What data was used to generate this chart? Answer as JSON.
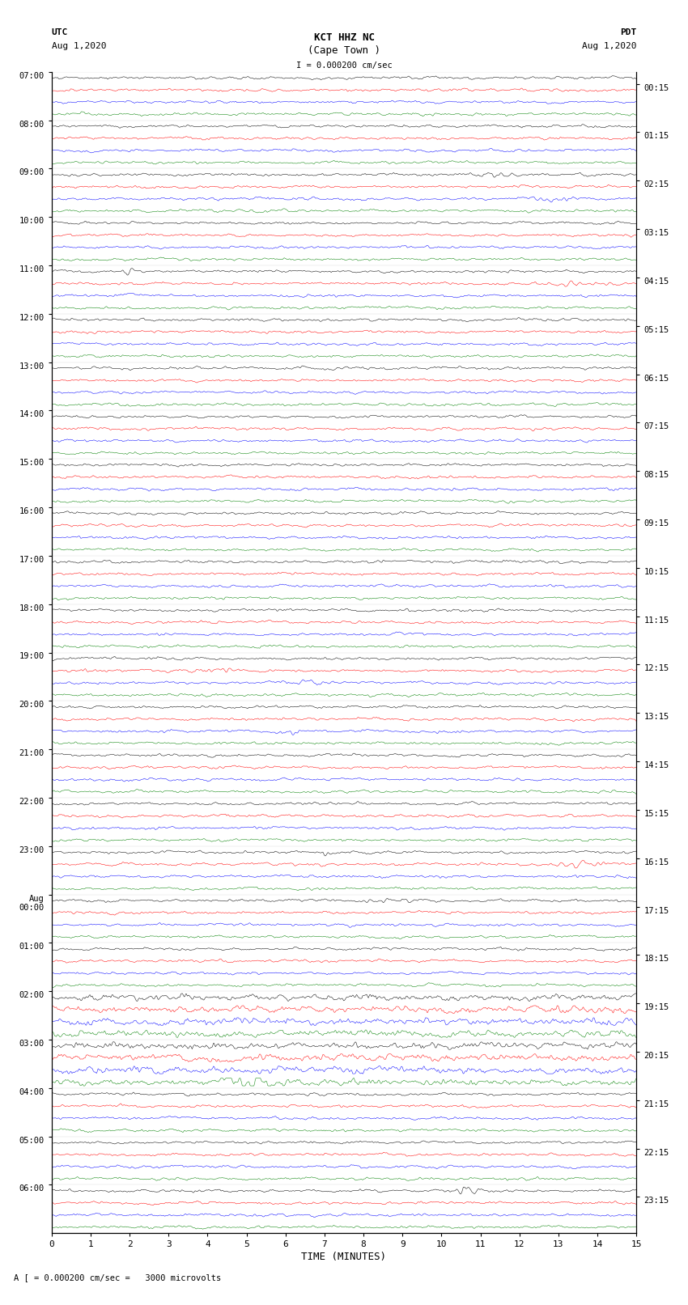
{
  "title_line1": "KCT HHZ NC",
  "title_line2": "(Cape Town )",
  "scale_label": "I = 0.000200 cm/sec",
  "bottom_label": "A [ = 0.000200 cm/sec =   3000 microvolts",
  "xlabel": "TIME (MINUTES)",
  "left_header": "UTC\nAug 1,2020",
  "right_header": "PDT\nAug 1,2020",
  "left_times": [
    "07:00",
    "08:00",
    "09:00",
    "10:00",
    "11:00",
    "12:00",
    "13:00",
    "14:00",
    "15:00",
    "16:00",
    "17:00",
    "18:00",
    "19:00",
    "20:00",
    "21:00",
    "22:00",
    "23:00",
    "Aug\n00:00",
    "01:00",
    "02:00",
    "03:00",
    "04:00",
    "05:00",
    "06:00"
  ],
  "right_times": [
    "00:15",
    "01:15",
    "02:15",
    "03:15",
    "04:15",
    "05:15",
    "06:15",
    "07:15",
    "08:15",
    "09:15",
    "10:15",
    "11:15",
    "12:15",
    "13:15",
    "14:15",
    "15:15",
    "16:15",
    "17:15",
    "18:15",
    "19:15",
    "20:15",
    "21:15",
    "22:15",
    "23:15"
  ],
  "trace_colors": [
    "black",
    "red",
    "blue",
    "green"
  ],
  "n_hours": 24,
  "traces_per_hour": 4,
  "xmin": 0,
  "xmax": 15,
  "bg_color": "white",
  "trace_linewidth": 0.4,
  "amplitude_scale": 0.35,
  "amplitude_scale_low": 0.15,
  "xticks": [
    0,
    1,
    2,
    3,
    4,
    5,
    6,
    7,
    8,
    9,
    10,
    11,
    12,
    13,
    14,
    15
  ]
}
